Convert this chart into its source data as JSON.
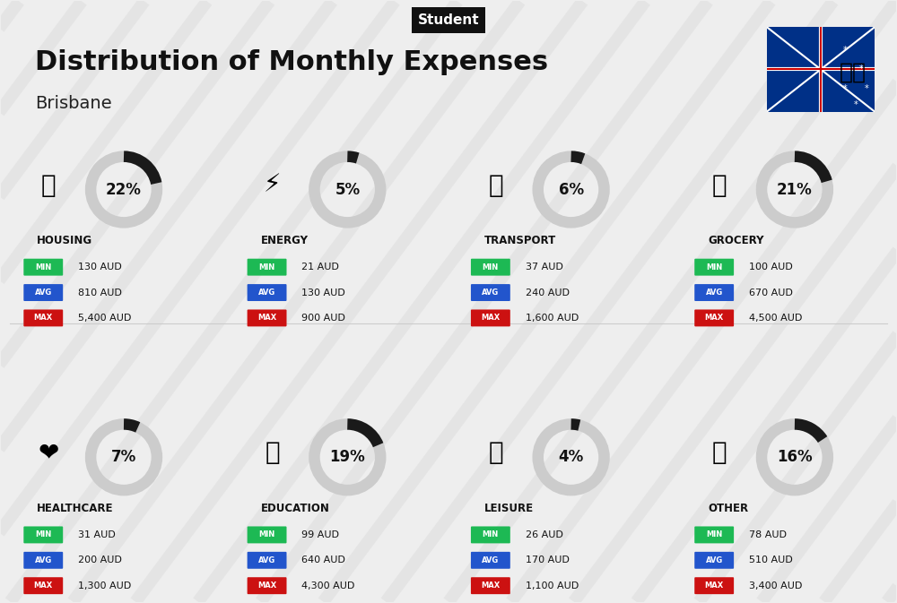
{
  "title": "Distribution of Monthly Expenses",
  "subtitle": "Brisbane",
  "badge": "Student",
  "bg_color": "#eeeeee",
  "categories": [
    {
      "name": "HOUSING",
      "pct": 22,
      "min": "130 AUD",
      "avg": "810 AUD",
      "max": "5,400 AUD"
    },
    {
      "name": "ENERGY",
      "pct": 5,
      "min": "21 AUD",
      "avg": "130 AUD",
      "max": "900 AUD"
    },
    {
      "name": "TRANSPORT",
      "pct": 6,
      "min": "37 AUD",
      "avg": "240 AUD",
      "max": "1,600 AUD"
    },
    {
      "name": "GROCERY",
      "pct": 21,
      "min": "100 AUD",
      "avg": "670 AUD",
      "max": "4,500 AUD"
    },
    {
      "name": "HEALTHCARE",
      "pct": 7,
      "min": "31 AUD",
      "avg": "200 AUD",
      "max": "1,300 AUD"
    },
    {
      "name": "EDUCATION",
      "pct": 19,
      "min": "99 AUD",
      "avg": "640 AUD",
      "max": "4,300 AUD"
    },
    {
      "name": "LEISURE",
      "pct": 4,
      "min": "26 AUD",
      "avg": "170 AUD",
      "max": "1,100 AUD"
    },
    {
      "name": "OTHER",
      "pct": 16,
      "min": "78 AUD",
      "avg": "510 AUD",
      "max": "3,400 AUD"
    }
  ],
  "icons": [
    "🏢",
    "⚡",
    "🚌",
    "🛒",
    "❤",
    "🎓",
    "🛍",
    "💰"
  ],
  "min_color": "#1db954",
  "avg_color": "#2255cc",
  "max_color": "#cc1111",
  "label_text_color": "#ffffff",
  "category_name_color": "#111111",
  "pct_color": "#111111",
  "ring_filled_color": "#1a1a1a",
  "ring_empty_color": "#cccccc",
  "ring_linewidth": 9,
  "flag_emoji": "🇦🇺"
}
